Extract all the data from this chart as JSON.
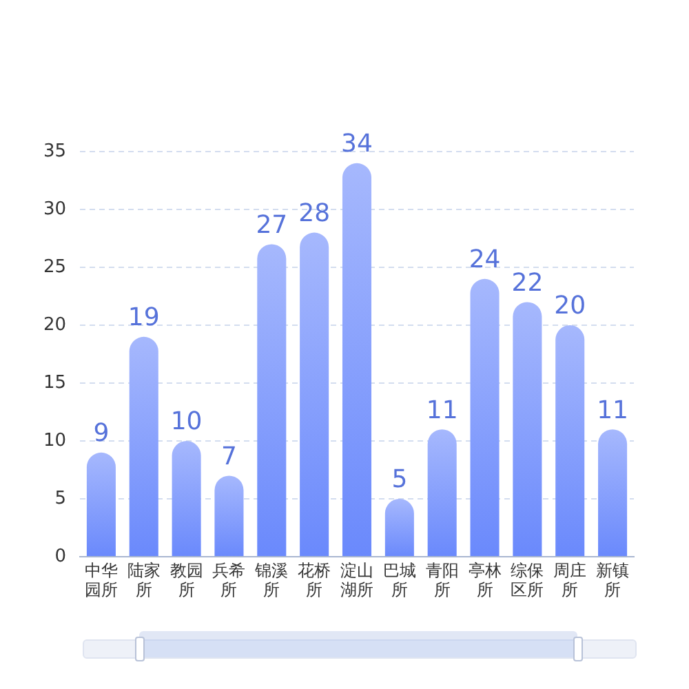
{
  "chart_data": {
    "type": "bar",
    "categories": [
      "中华园所",
      "陆家所",
      "教园所",
      "兵希所",
      "锦溪所",
      "花桥所",
      "淀山湖所",
      "巴城所",
      "青阳所",
      "亭林所",
      "综保区所",
      "周庄所",
      "新镇所"
    ],
    "values": [
      9,
      19,
      10,
      7,
      27,
      28,
      34,
      5,
      11,
      24,
      22,
      20,
      11
    ],
    "color": "#6a89fc",
    "ylim": [
      0,
      35
    ],
    "yticks": [
      0,
      5,
      10,
      15,
      20,
      25,
      30,
      35
    ],
    "grid": "y",
    "data_labels": true
  }
}
